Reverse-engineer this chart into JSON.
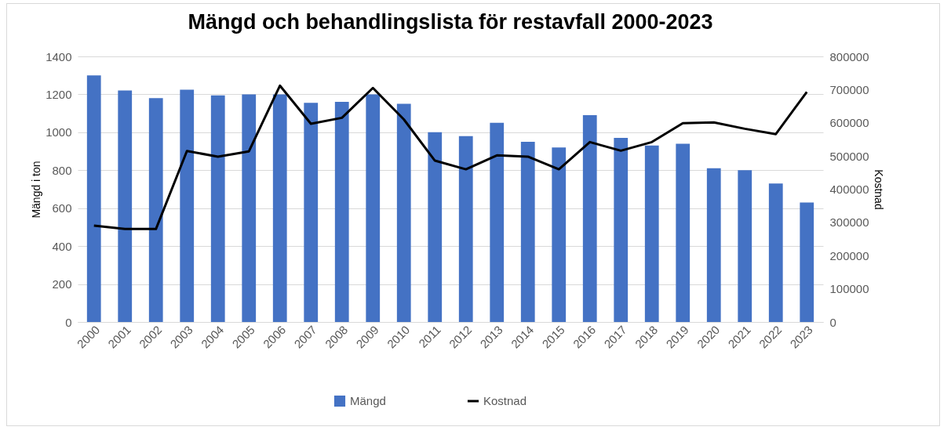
{
  "chart_data": {
    "type": "bar",
    "title": "Mängd och behandlingslista för restavfall 2000-2023",
    "categories": [
      "2000",
      "2001",
      "2002",
      "2003",
      "2004",
      "2005",
      "2006",
      "2007",
      "2008",
      "2009",
      "2010",
      "2011",
      "2012",
      "2013",
      "2014",
      "2015",
      "2016",
      "2017",
      "2018",
      "2019",
      "2020",
      "2021",
      "2022",
      "2023"
    ],
    "series": [
      {
        "name": "Mängd",
        "color": "#4472c4",
        "values": [
          1300,
          1220,
          1180,
          1225,
          1195,
          1200,
          1200,
          1155,
          1160,
          1200,
          1150,
          1000,
          980,
          1050,
          950,
          920,
          1090,
          970,
          930,
          940,
          810,
          800,
          730,
          630
        ]
      },
      {
        "name": "Kostnad",
        "type": "line",
        "axis": "y2",
        "color": "#000000",
        "values": [
          290000,
          280000,
          280000,
          515000,
          498000,
          514000,
          712000,
          597000,
          615000,
          705000,
          610000,
          486000,
          460000,
          502000,
          498000,
          460000,
          542000,
          516000,
          542000,
          599000,
          601000,
          582000,
          566000,
          693000
        ]
      }
    ],
    "ylabel": "Mängd i ton",
    "y2label": "Kostnad",
    "ylim": [
      0,
      1400
    ],
    "yticks": [
      0,
      200,
      400,
      600,
      800,
      1000,
      1200,
      1400
    ],
    "y2lim": [
      0,
      800000
    ],
    "y2ticks": [
      0,
      100000,
      200000,
      300000,
      400000,
      500000,
      600000,
      700000,
      800000
    ],
    "grid": "y",
    "legend": "bottom"
  }
}
